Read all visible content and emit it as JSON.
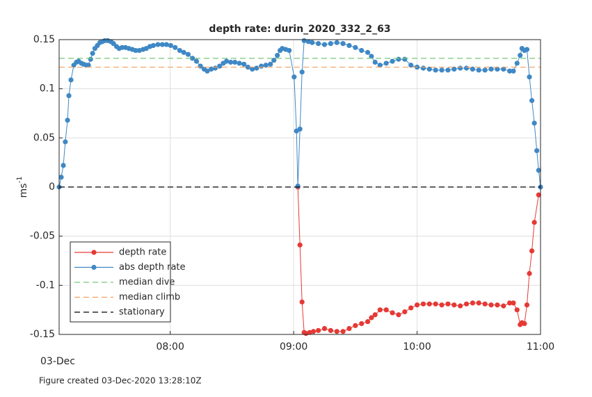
{
  "chart_data": {
    "type": "line",
    "title": "depth rate: durin_2020_332_2_63",
    "y_label": "ms",
    "y_label_sup": "-1",
    "x_date_label": "03-Dec",
    "footer": "Figure created 03-Dec-2020 13:28:10Z",
    "xlim": [
      7.1,
      11.0
    ],
    "xticks": [
      {
        "value": 8,
        "label": "08:00"
      },
      {
        "value": 9,
        "label": "09:00"
      },
      {
        "value": 10,
        "label": "10:00"
      },
      {
        "value": 11,
        "label": "11:00"
      }
    ],
    "ylim": [
      -0.15,
      0.15
    ],
    "yticks": [
      -0.15,
      -0.1,
      -0.05,
      0,
      0.05,
      0.1,
      0.15
    ],
    "grid": true,
    "legend": "lower left",
    "series": [
      {
        "name": "depth rate",
        "color": "#e53935",
        "marker": true,
        "x": [
          9.034,
          9.051,
          9.068,
          9.085,
          9.1,
          9.13,
          9.16,
          9.2,
          9.25,
          9.3,
          9.35,
          9.4,
          9.45,
          9.5,
          9.55,
          9.6,
          9.63,
          9.66,
          9.7,
          9.75,
          9.8,
          9.85,
          9.9,
          9.95,
          10.0,
          10.05,
          10.1,
          10.15,
          10.2,
          10.25,
          10.3,
          10.35,
          10.4,
          10.45,
          10.5,
          10.55,
          10.6,
          10.65,
          10.7,
          10.75,
          10.78,
          10.81,
          10.835,
          10.85,
          10.87,
          10.89,
          10.91,
          10.93,
          10.95,
          10.985
        ],
        "values": [
          0,
          -0.059,
          -0.117,
          -0.148,
          -0.149,
          -0.148,
          -0.147,
          -0.146,
          -0.144,
          -0.146,
          -0.147,
          -0.147,
          -0.144,
          -0.141,
          -0.139,
          -0.137,
          -0.133,
          -0.13,
          -0.125,
          -0.125,
          -0.128,
          -0.13,
          -0.127,
          -0.123,
          -0.12,
          -0.119,
          -0.119,
          -0.119,
          -0.12,
          -0.119,
          -0.12,
          -0.121,
          -0.119,
          -0.118,
          -0.118,
          -0.119,
          -0.12,
          -0.12,
          -0.121,
          -0.118,
          -0.118,
          -0.125,
          -0.14,
          -0.138,
          -0.139,
          -0.12,
          -0.088,
          -0.065,
          -0.036,
          -0.008
        ]
      },
      {
        "name": "abs depth rate",
        "color": "#3f88c5",
        "marker": true,
        "x": [
          7.1,
          7.117,
          7.134,
          7.15,
          7.168,
          7.179,
          7.196,
          7.219,
          7.24,
          7.258,
          7.28,
          7.298,
          7.32,
          7.337,
          7.355,
          7.371,
          7.39,
          7.41,
          7.43,
          7.45,
          7.47,
          7.495,
          7.52,
          7.54,
          7.565,
          7.586,
          7.61,
          7.637,
          7.665,
          7.693,
          7.72,
          7.75,
          7.78,
          7.806,
          7.835,
          7.863,
          7.9,
          7.936,
          7.97,
          8.004,
          8.04,
          8.077,
          8.11,
          8.145,
          8.18,
          8.213,
          8.245,
          8.275,
          8.3,
          8.332,
          8.365,
          8.4,
          8.43,
          8.456,
          8.49,
          8.524,
          8.56,
          8.597,
          8.63,
          8.665,
          8.7,
          8.738,
          8.775,
          8.812,
          8.84,
          8.868,
          8.89,
          8.908,
          8.936,
          8.964,
          9.004,
          9.023,
          9.034,
          9.051,
          9.068,
          9.085,
          9.12,
          9.15,
          9.2,
          9.25,
          9.3,
          9.35,
          9.4,
          9.45,
          9.5,
          9.55,
          9.6,
          9.63,
          9.66,
          9.7,
          9.75,
          9.8,
          9.85,
          9.9,
          9.95,
          10.0,
          10.05,
          10.1,
          10.15,
          10.2,
          10.25,
          10.3,
          10.35,
          10.4,
          10.45,
          10.5,
          10.55,
          10.6,
          10.65,
          10.7,
          10.75,
          10.78,
          10.81,
          10.835,
          10.85,
          10.87,
          10.89,
          10.91,
          10.93,
          10.95,
          10.97,
          10.985,
          11.0
        ],
        "values": [
          0,
          0.01,
          0.022,
          0.046,
          0.068,
          0.093,
          0.109,
          0.124,
          0.127,
          0.128,
          0.126,
          0.125,
          0.124,
          0.124,
          0.13,
          0.136,
          0.141,
          0.144,
          0.147,
          0.148,
          0.149,
          0.149,
          0.148,
          0.146,
          0.143,
          0.141,
          0.142,
          0.142,
          0.141,
          0.14,
          0.139,
          0.139,
          0.14,
          0.141,
          0.143,
          0.144,
          0.145,
          0.145,
          0.145,
          0.144,
          0.142,
          0.139,
          0.137,
          0.135,
          0.131,
          0.128,
          0.123,
          0.12,
          0.118,
          0.12,
          0.121,
          0.123,
          0.126,
          0.128,
          0.127,
          0.127,
          0.126,
          0.125,
          0.122,
          0.12,
          0.121,
          0.123,
          0.124,
          0.125,
          0.129,
          0.134,
          0.139,
          0.141,
          0.14,
          0.139,
          0.112,
          0.057,
          0.001,
          0.059,
          0.117,
          0.149,
          0.148,
          0.147,
          0.146,
          0.145,
          0.146,
          0.147,
          0.146,
          0.144,
          0.142,
          0.139,
          0.137,
          0.133,
          0.127,
          0.124,
          0.126,
          0.128,
          0.13,
          0.13,
          0.124,
          0.122,
          0.121,
          0.12,
          0.119,
          0.119,
          0.119,
          0.12,
          0.121,
          0.121,
          0.12,
          0.119,
          0.119,
          0.12,
          0.12,
          0.12,
          0.118,
          0.118,
          0.126,
          0.134,
          0.141,
          0.139,
          0.14,
          0.112,
          0.088,
          0.065,
          0.037,
          0.017,
          0
        ]
      },
      {
        "name": "median dive",
        "color": "#77c777",
        "dashed": true,
        "values": [
          0.131
        ]
      },
      {
        "name": "median climb",
        "color": "#f0a060",
        "dashed": true,
        "values": [
          0.122
        ]
      },
      {
        "name": "stationary",
        "color": "#000000",
        "dashed": true,
        "values": [
          0
        ]
      }
    ]
  }
}
